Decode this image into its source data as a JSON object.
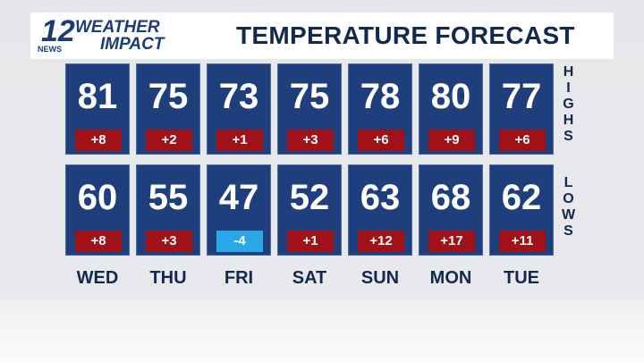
{
  "header": {
    "logo": {
      "number": "12",
      "brand": "WEATHER",
      "sub": "IMPACT",
      "news": "NEWS"
    },
    "title": "TEMPERATURE FORECAST"
  },
  "rows": [
    {
      "label": "HIGHS",
      "temps": [
        81,
        75,
        73,
        75,
        78,
        80,
        77
      ],
      "departures": [
        "+8",
        "+2",
        "+1",
        "+3",
        "+6",
        "+9",
        "+6"
      ]
    },
    {
      "label": "LOWS",
      "temps": [
        60,
        55,
        47,
        52,
        63,
        68,
        62
      ],
      "departures": [
        "+8",
        "+3",
        "-4",
        "+1",
        "+12",
        "+17",
        "+11"
      ]
    }
  ],
  "days": [
    "WED",
    "THU",
    "FRI",
    "SAT",
    "SUN",
    "MON",
    "TUE"
  ]
}
